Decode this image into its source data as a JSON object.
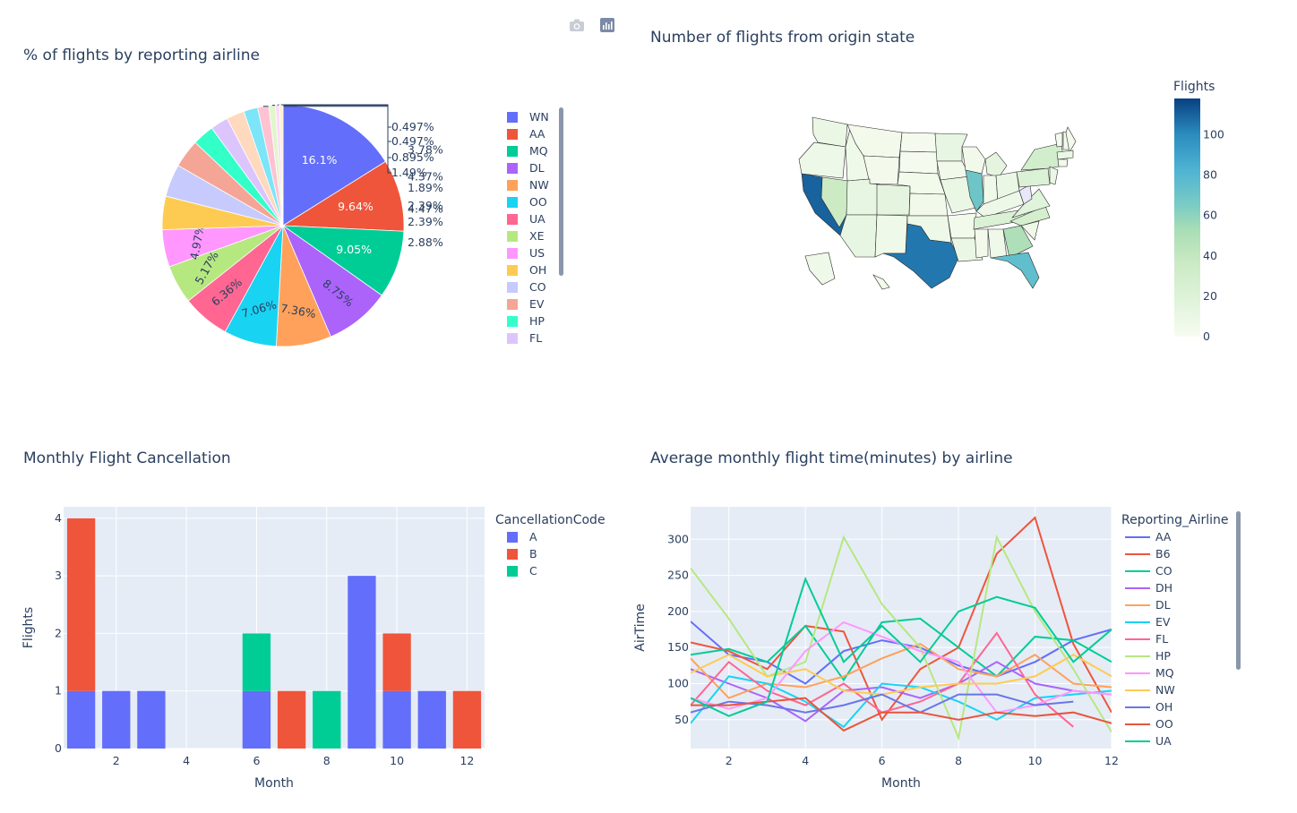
{
  "modebar": {
    "camera_icon": "camera-icon",
    "plotly_icon": "plotly-logo-icon"
  },
  "chart_data": [
    {
      "type": "pie",
      "title": "% of flights by reporting airline",
      "legend_position": "right",
      "slices": [
        {
          "label": "WN",
          "percent": 16.1,
          "text": "16.1%",
          "color": "#636efa"
        },
        {
          "label": "AA",
          "percent": 9.64,
          "text": "9.64%",
          "color": "#EF553B"
        },
        {
          "label": "MQ",
          "percent": 9.05,
          "text": "9.05%",
          "color": "#00cc96"
        },
        {
          "label": "DL",
          "percent": 8.75,
          "text": "8.75%",
          "color": "#ab63fa"
        },
        {
          "label": "NW",
          "percent": 7.36,
          "text": "7.36%",
          "color": "#FFA15A"
        },
        {
          "label": "OO",
          "percent": 7.06,
          "text": "7.06%",
          "color": "#19d3f3"
        },
        {
          "label": "UA",
          "percent": 6.36,
          "text": "6.36%",
          "color": "#FF6692"
        },
        {
          "label": "XE",
          "percent": 5.17,
          "text": "5.17%",
          "color": "#B6E880"
        },
        {
          "label": "US",
          "percent": 4.97,
          "text": "4.97%",
          "color": "#FF97FF"
        },
        {
          "label": "OH",
          "percent": 4.47,
          "text": "4.47%",
          "color": "#FECB52"
        },
        {
          "label": "CO",
          "percent": 4.37,
          "text": "4.37%",
          "color": "#c6cafc"
        },
        {
          "label": "EV",
          "percent": 3.78,
          "text": "3.78%",
          "color": "#f4a596"
        },
        {
          "label": "HP",
          "percent": 2.88,
          "text": "2.88%",
          "color": "#33ffc9"
        },
        {
          "label": "FL",
          "percent": 2.39,
          "text": "2.39%",
          "color": "#dcc5fd"
        },
        {
          "label": "",
          "percent": 2.39,
          "text": "2.39%",
          "color": "#ffd9be"
        },
        {
          "label": "",
          "percent": 1.89,
          "text": "1.89%",
          "color": "#7ce5f8"
        },
        {
          "label": "",
          "percent": 1.49,
          "text": "1.49%",
          "color": "#ffc2d3"
        },
        {
          "label": "",
          "percent": 0.895,
          "text": "0.895%",
          "color": "#e2f6cc"
        },
        {
          "label": "",
          "percent": 0.497,
          "text": "0.497%",
          "color": "#ffd5ff"
        },
        {
          "label": "",
          "percent": 0.497,
          "text": "0.497%",
          "color": "#fff0cb"
        }
      ]
    },
    {
      "type": "choropleth",
      "title": "Number of flights from origin state",
      "colorbar_title": "Flights",
      "colorbar_ticks": [
        0,
        20,
        40,
        60,
        80,
        100
      ],
      "zrange": [
        0,
        118
      ],
      "values": {
        "CA": 110,
        "TX": 105,
        "IL": 70,
        "FL": 75,
        "GA": 50,
        "NV": 35,
        "NY": 30,
        "PA": 22,
        "NC": 28,
        "MI": 15,
        "VA": 18,
        "TN": 22,
        "WA": 10,
        "OR": 7,
        "ID": 6,
        "MT": 3,
        "WY": 3,
        "UT": 12,
        "CO": 15,
        "AZ": 12,
        "NM": 6,
        "ND": 2,
        "SD": 2,
        "NE": 4,
        "KS": 5,
        "OK": 7,
        "MN": 12,
        "IA": 5,
        "MO": 10,
        "AR": 4,
        "LA": 10,
        "WI": 5,
        "IN": 6,
        "OH": 10,
        "KY": 7,
        "WV": 0,
        "MS": 3,
        "AL": 6,
        "SC": 6,
        "ME": 3,
        "NH": 3,
        "VT": 2,
        "MA": 10,
        "CT": 5,
        "NJ": 10,
        "AK": 6,
        "HI": 4
      }
    },
    {
      "type": "bar",
      "title": "Monthly Flight Cancellation",
      "xlabel": "Month",
      "ylabel": "Flights",
      "legend_title": "CancellationCode",
      "x_ticks": [
        2,
        4,
        6,
        8,
        10,
        12
      ],
      "y_ticks": [
        0,
        1,
        2,
        3,
        4
      ],
      "xlim": [
        0.5,
        12.5
      ],
      "ylim": [
        0,
        4.2
      ],
      "months": [
        1,
        2,
        3,
        4,
        5,
        6,
        7,
        8,
        9,
        10,
        11,
        12
      ],
      "series": [
        {
          "name": "A",
          "color": "#636efa",
          "values": [
            1,
            1,
            1,
            0,
            0,
            1,
            0,
            0,
            3,
            1,
            1,
            0
          ]
        },
        {
          "name": "B",
          "color": "#EF553B",
          "values": [
            3,
            0,
            0,
            0,
            0,
            0,
            1,
            0,
            0,
            1,
            0,
            1
          ]
        },
        {
          "name": "C",
          "color": "#00cc96",
          "values": [
            0,
            0,
            0,
            0,
            0,
            1,
            0,
            1,
            0,
            0,
            0,
            0
          ]
        }
      ]
    },
    {
      "type": "line",
      "title": "Average monthly flight time(minutes) by airline",
      "xlabel": "Month",
      "ylabel": "AirTime",
      "legend_title": "Reporting_Airline",
      "x_ticks": [
        2,
        4,
        6,
        8,
        10,
        12
      ],
      "y_ticks": [
        50,
        100,
        150,
        200,
        250,
        300
      ],
      "xlim": [
        1,
        12
      ],
      "ylim": [
        10,
        345
      ],
      "x": [
        1,
        2,
        3,
        4,
        5,
        6,
        7,
        8,
        9,
        10,
        11,
        12
      ],
      "series": [
        {
          "name": "AA",
          "color": "#636efa",
          "values": [
            186,
            140,
            130,
            100,
            145,
            160,
            150,
            125,
            110,
            130,
            160,
            175
          ]
        },
        {
          "name": "B6",
          "color": "#EF553B",
          "values": [
            157,
            145,
            120,
            180,
            172,
            50,
            120,
            150,
            280,
            330,
            155,
            60
          ]
        },
        {
          "name": "CO",
          "color": "#00cc96",
          "values": [
            140,
            148,
            130,
            180,
            105,
            185,
            190,
            150,
            110,
            165,
            160,
            130
          ]
        },
        {
          "name": "DH",
          "color": "#ab63fa",
          "values": [
            120,
            100,
            80,
            48,
            90,
            95,
            80,
            100,
            130,
            100,
            90,
            85
          ]
        },
        {
          "name": "DL",
          "color": "#FFA15A",
          "values": [
            135,
            80,
            100,
            95,
            110,
            135,
            155,
            120,
            110,
            140,
            100,
            95
          ]
        },
        {
          "name": "EV",
          "color": "#19d3f3",
          "values": [
            45,
            110,
            100,
            75,
            40,
            100,
            95,
            75,
            50,
            80,
            85,
            90
          ]
        },
        {
          "name": "FL",
          "color": "#FF6692",
          "values": [
            70,
            130,
            90,
            70,
            100,
            60,
            75,
            100,
            170,
            85,
            40,
            null
          ]
        },
        {
          "name": "HP",
          "color": "#B6E880",
          "values": [
            260,
            190,
            110,
            130,
            303,
            210,
            150,
            25,
            303,
            200,
            120,
            33
          ]
        },
        {
          "name": "MQ",
          "color": "#FF97FF",
          "values": [
            80,
            65,
            80,
            145,
            185,
            165,
            145,
            130,
            60,
            70,
            90,
            85
          ]
        },
        {
          "name": "NW",
          "color": "#FECB52",
          "values": [
            115,
            140,
            110,
            120,
            90,
            85,
            95,
            100,
            100,
            110,
            140,
            110
          ]
        },
        {
          "name": "OH",
          "color": "#6a75e8",
          "values": [
            60,
            75,
            70,
            60,
            70,
            85,
            60,
            85,
            85,
            70,
            75,
            null
          ]
        },
        {
          "name": "OO",
          "color": "#e8553b",
          "values": [
            70,
            70,
            75,
            80,
            35,
            60,
            60,
            50,
            60,
            55,
            60,
            45
          ]
        },
        {
          "name": "UA",
          "color": "#00cc96",
          "values": [
            80,
            55,
            75,
            245,
            130,
            180,
            130,
            200,
            220,
            205,
            130,
            175
          ]
        }
      ]
    }
  ]
}
